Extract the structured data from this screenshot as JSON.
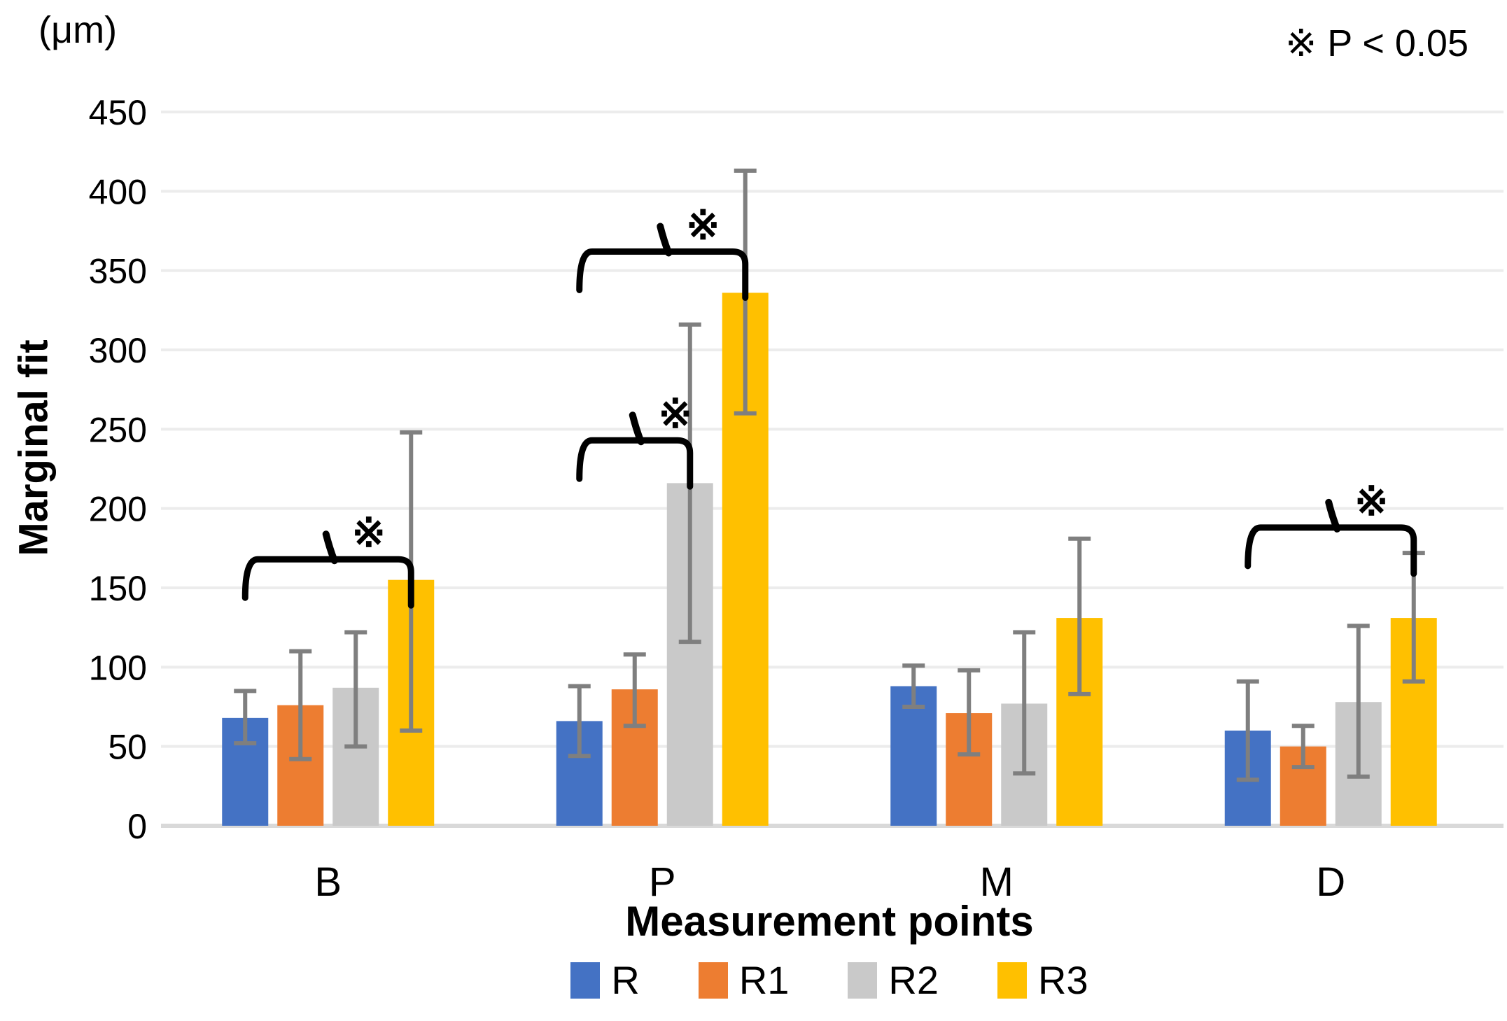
{
  "chart_data": {
    "type": "bar",
    "unit_label": "(μm)",
    "significance_note": "※ P < 0.05",
    "sig_marker": "※",
    "ylabel": "Marginal fit",
    "xlabel": "Measurement points",
    "categories": [
      "B",
      "P",
      "M",
      "D"
    ],
    "series": [
      {
        "name": "R",
        "color": "#4472C4",
        "values": [
          68,
          66,
          88,
          60
        ],
        "err_low": [
          52,
          44,
          75,
          29
        ],
        "err_high": [
          85,
          88,
          101,
          91
        ]
      },
      {
        "name": "R1",
        "color": "#ED7D31",
        "values": [
          76,
          86,
          71,
          50
        ],
        "err_low": [
          42,
          63,
          45,
          37
        ],
        "err_high": [
          110,
          108,
          98,
          63
        ]
      },
      {
        "name": "R2",
        "color": "#C9C9C9",
        "values": [
          87,
          216,
          77,
          78
        ],
        "err_low": [
          50,
          116,
          33,
          31
        ],
        "err_high": [
          122,
          316,
          122,
          126
        ]
      },
      {
        "name": "R3",
        "color": "#FFC000",
        "values": [
          155,
          336,
          131,
          131
        ],
        "err_low": [
          60,
          260,
          83,
          91
        ],
        "err_high": [
          248,
          413,
          181,
          172
        ]
      }
    ],
    "ylim": [
      0,
      450
    ],
    "ytick_step": 50,
    "grid": true,
    "legend_position": "bottom",
    "error_bar_color": "#7F7F7F",
    "gridline_color": "#ECECEC",
    "baseline_color": "#D9D9D9",
    "bracket_color": "#000000",
    "brackets": [
      {
        "category": "B",
        "from": "R",
        "to": "R3",
        "line_value": 168,
        "marker": "※"
      },
      {
        "category": "P",
        "from": "R",
        "to": "R2",
        "line_value": 243,
        "marker": "※"
      },
      {
        "category": "P",
        "from": "R",
        "to": "R3",
        "line_value": 362,
        "marker": "※"
      },
      {
        "category": "D",
        "from": "R",
        "to": "R3",
        "line_value": 188,
        "marker": "※"
      }
    ]
  }
}
